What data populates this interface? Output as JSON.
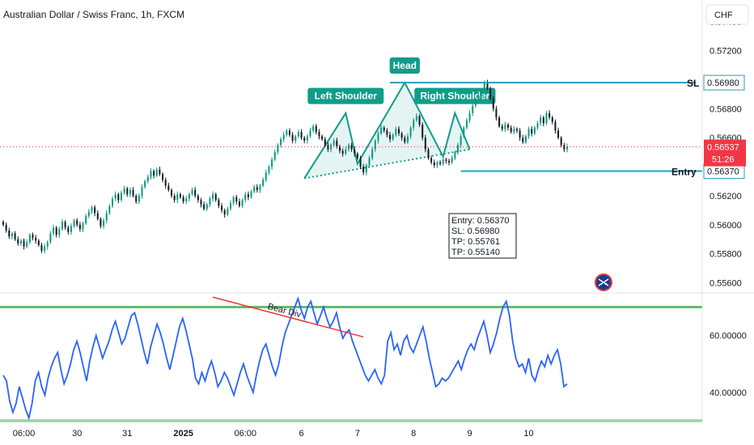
{
  "title": "Australian Dollar / Swiss Franc, 1h, FXCM",
  "currency": "CHF",
  "colors": {
    "up": "#089981",
    "down": "#131722",
    "pattern": "#0f9d8a",
    "pattern_fill": "#b2dfdb",
    "sl_line": "#26a0b8",
    "rsi": "#2962ff",
    "rsi_bounds": "#66bb6a",
    "divergence": "#e53935",
    "price_tag": "#f23645",
    "level_tag": "#26a0b8",
    "ann_bg": "#0f9d8a"
  },
  "chart_data": [
    {
      "type": "candlestick",
      "title": "Australian Dollar / Swiss Franc, 1h, FXCM",
      "ylim": [
        0.5553,
        0.5755
      ],
      "y_ticks": [
        "0.57400",
        "0.57200",
        "0.56800",
        "0.56600",
        "0.56200",
        "0.56000",
        "0.55800",
        "0.55600"
      ],
      "x_ticks": [
        "06:00",
        "30",
        "31",
        "2025",
        "06:00",
        "6",
        "7",
        "8",
        "9",
        "10"
      ],
      "series": [
        {
          "values": [
            0.56,
            0.5596,
            0.5592,
            0.5594,
            0.559,
            0.5587,
            0.5589,
            0.5585,
            0.5588,
            0.5593,
            0.5591,
            0.5589,
            0.5586,
            0.5582,
            0.5585,
            0.5588,
            0.5594,
            0.5598,
            0.5593,
            0.5597,
            0.5602,
            0.5598,
            0.5595,
            0.5599,
            0.5603,
            0.56,
            0.5597,
            0.5601,
            0.5606,
            0.5609,
            0.5612,
            0.5608,
            0.5604,
            0.5599,
            0.5603,
            0.5608,
            0.5613,
            0.5618,
            0.5621,
            0.5617,
            0.5622,
            0.5625,
            0.5621,
            0.5624,
            0.562,
            0.5616,
            0.562,
            0.5626,
            0.563,
            0.5633,
            0.5637,
            0.5634,
            0.5638,
            0.5635,
            0.5631,
            0.5627,
            0.5624,
            0.562,
            0.5617,
            0.5621,
            0.5619,
            0.5616,
            0.5618,
            0.5621,
            0.5624,
            0.562,
            0.5617,
            0.5614,
            0.5611,
            0.5614,
            0.5618,
            0.5621,
            0.5617,
            0.5613,
            0.561,
            0.5607,
            0.5611,
            0.5615,
            0.5619,
            0.5616,
            0.5613,
            0.5617,
            0.5621,
            0.5619,
            0.5623,
            0.5626,
            0.5624,
            0.5627,
            0.5631,
            0.5636,
            0.564,
            0.5645,
            0.565,
            0.5655,
            0.5659,
            0.5662,
            0.5665,
            0.5662,
            0.5658,
            0.5661,
            0.5664,
            0.566,
            0.5658,
            0.5661,
            0.5665,
            0.5668,
            0.5664,
            0.5661,
            0.5659,
            0.5655,
            0.5652,
            0.5655,
            0.5658,
            0.5654,
            0.5651,
            0.5649,
            0.5652,
            0.5655,
            0.5652,
            0.5649,
            0.5646,
            0.564,
            0.5636,
            0.5641,
            0.5646,
            0.5652,
            0.5658,
            0.5663,
            0.5667,
            0.5665,
            0.5662,
            0.5659,
            0.5662,
            0.5666,
            0.5663,
            0.566,
            0.5657,
            0.5661,
            0.5667,
            0.5672,
            0.5675,
            0.5669,
            0.566,
            0.5652,
            0.5646,
            0.5643,
            0.5641,
            0.5643,
            0.5642,
            0.5645,
            0.5644,
            0.5643,
            0.5646,
            0.565,
            0.5655,
            0.5661,
            0.5667,
            0.5672,
            0.5677,
            0.5682,
            0.5686,
            0.5689,
            0.5693,
            0.5698,
            0.5694,
            0.5687,
            0.568,
            0.5674,
            0.5668,
            0.5666,
            0.5669,
            0.5667,
            0.5664,
            0.5666,
            0.5665,
            0.566,
            0.5657,
            0.5661,
            0.5666,
            0.5663,
            0.5667,
            0.567,
            0.5674,
            0.567,
            0.5677,
            0.5674,
            0.5671,
            0.5665,
            0.566,
            0.5655,
            0.5652,
            0.5654
          ]
        }
      ],
      "close": 0.56537,
      "countdown": "51:26",
      "levels": {
        "sl": "0.56980",
        "entry": "0.56370"
      },
      "labels": {
        "sl": "SL",
        "entry": "Entry"
      },
      "annotations": [
        "Left Shoulder",
        "Head",
        "Right Shoulder"
      ],
      "info_box": [
        "Entry: 0.56370",
        "SL: 0.56980",
        "TP: 0.55761",
        "TP: 0.55140"
      ]
    },
    {
      "type": "line",
      "ylim": [
        30,
        75
      ],
      "y_ticks": [
        "60.00000",
        "40.00000"
      ],
      "bounds": [
        70,
        30
      ],
      "divergence_label": "Bear Div",
      "series": [
        {
          "values": [
            46,
            44,
            37,
            33,
            36,
            42,
            38,
            34,
            31,
            36,
            44,
            47,
            42,
            39,
            45,
            49,
            52,
            54,
            48,
            43,
            46,
            50,
            55,
            58,
            54,
            49,
            44,
            51,
            56,
            60,
            56,
            52,
            55,
            58,
            62,
            65,
            61,
            57,
            59,
            63,
            67,
            68,
            64,
            59,
            54,
            50,
            56,
            60,
            64,
            61,
            57,
            52,
            48,
            53,
            58,
            63,
            66,
            62,
            57,
            52,
            45,
            43,
            47,
            44,
            48,
            51,
            47,
            42,
            44,
            47,
            45,
            42,
            39,
            43,
            47,
            50,
            46,
            43,
            40,
            46,
            51,
            55,
            57,
            53,
            49,
            46,
            50,
            56,
            61,
            64,
            67,
            70,
            73,
            69,
            66,
            70,
            72,
            68,
            64,
            67,
            70,
            66,
            63,
            65,
            68,
            63,
            59,
            61,
            62,
            58,
            55,
            52,
            49,
            46,
            44,
            46,
            48,
            45,
            43,
            46,
            58,
            61,
            55,
            57,
            53,
            58,
            60,
            56,
            54,
            57,
            60,
            63,
            58,
            52,
            47,
            42,
            43,
            45,
            44,
            45,
            47,
            49,
            51,
            48,
            52,
            55,
            57,
            55,
            59,
            62,
            65,
            60,
            54,
            57,
            61,
            66,
            70,
            72,
            67,
            58,
            52,
            49,
            50,
            47,
            52,
            46,
            44,
            48,
            51,
            49,
            53,
            50,
            53,
            55,
            50,
            42,
            43
          ]
        }
      ]
    }
  ]
}
